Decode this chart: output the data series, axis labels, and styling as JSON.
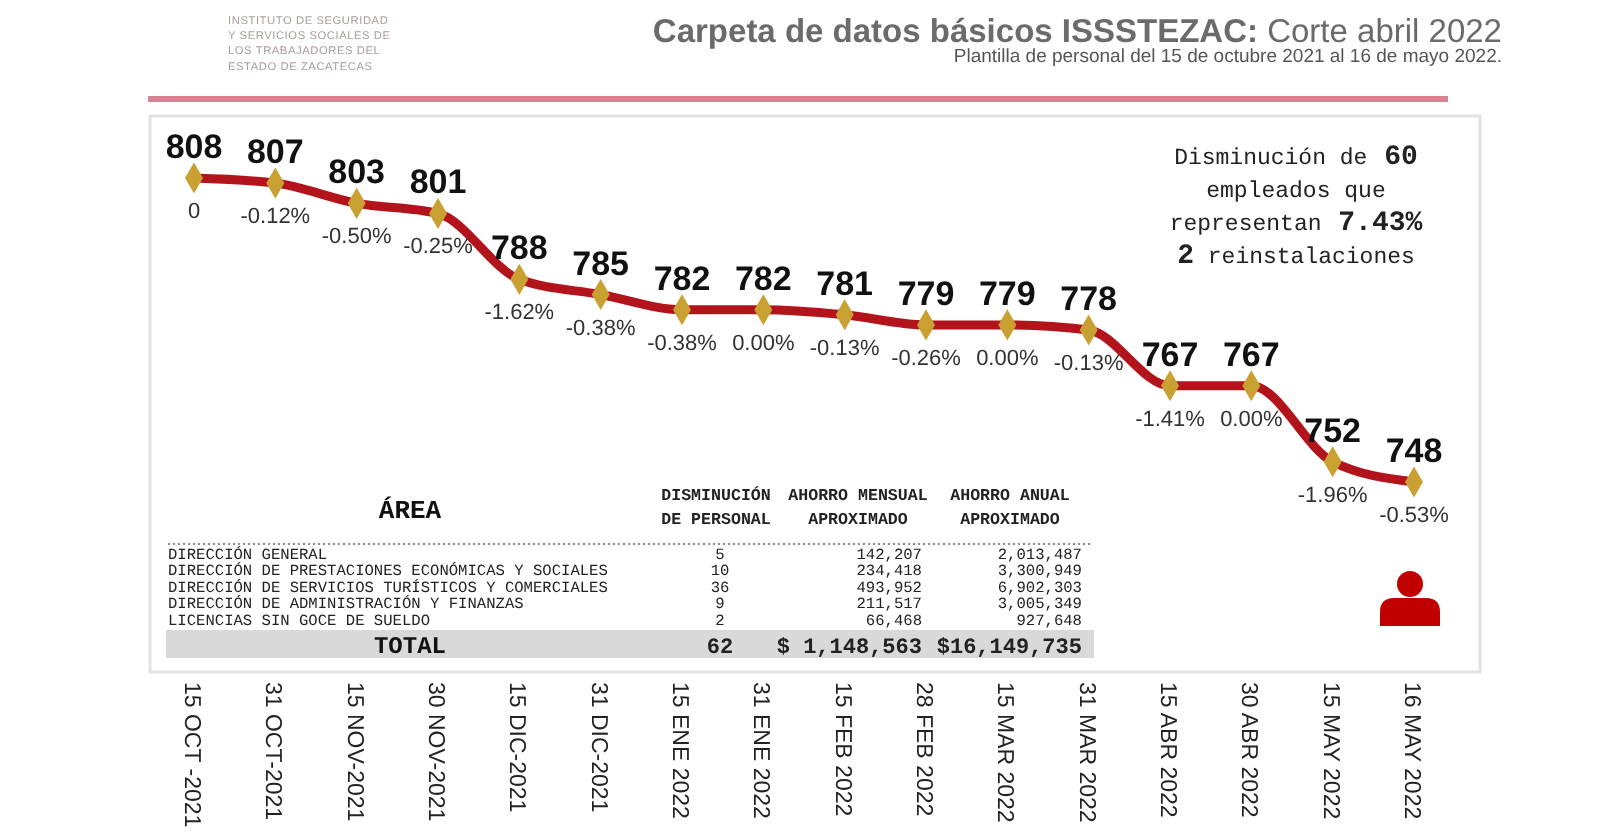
{
  "chart_data": [
    {
      "type": "line",
      "title": "Carpeta de datos básicos ISSSTEZAC: Corte abril 2022",
      "subtitle": "Plantilla de personal del 15 de octubre 2021 al 16 de mayo 2022.",
      "categories": [
        "15 OCT -2021",
        "31 OCT-2021",
        "15 NOV-2021",
        "30 NOV-2021",
        "15 DIC-2021",
        "31 DIC-2021",
        "15 ENE 2022",
        "31 ENE 2022",
        "15 FEB 2022",
        "28 FEB 2022",
        "15 MAR 2022",
        "31 MAR 2022",
        "15 ABR 2022",
        "30 ABR 2022",
        "15 MAY 2022",
        "16 MAY 2022"
      ],
      "values": [
        808,
        807,
        803,
        801,
        788,
        785,
        782,
        782,
        781,
        779,
        779,
        778,
        767,
        767,
        752,
        748
      ],
      "color": "#b3141c",
      "marker": "diamond",
      "data_labels": true,
      "tick_labels": "x",
      "annotations": [
        "INSTITUTO DE SEGURIDAD Y SERVICIOS SOCIALES DE LOS TRABAJADORES DEL ESTADO DE ZACATECAS",
        "Disminución de 60 empleados que representan 7.43% 2 reinstalaciones",
        {
          "text": "0",
          "x": "15 OCT -2021",
          "y": 808
        },
        {
          "text": "-0.12%",
          "x": "31 OCT-2021",
          "y": 807
        },
        {
          "text": "-0.50%",
          "x": "15 NOV-2021",
          "y": 803
        },
        {
          "text": "-0.25%",
          "x": "30 NOV-2021",
          "y": 801
        },
        {
          "text": "-1.62%",
          "x": "15 DIC-2021",
          "y": 788
        },
        {
          "text": "-0.38%",
          "x": "31 DIC-2021",
          "y": 785
        },
        {
          "text": "-0.38%",
          "x": "15 ENE 2022",
          "y": 782
        },
        {
          "text": "0.00%",
          "x": "31 ENE 2022",
          "y": 782
        },
        {
          "text": "-0.13%",
          "x": "15 FEB 2022",
          "y": 781
        },
        {
          "text": "-0.26%",
          "x": "28 FEB 2022",
          "y": 779
        },
        {
          "text": "0.00%",
          "x": "15 MAR 2022",
          "y": 779
        },
        {
          "text": "-0.13%",
          "x": "31 MAR 2022",
          "y": 778
        },
        {
          "text": "-1.41%",
          "x": "15 ABR 2022",
          "y": 767
        },
        {
          "text": "0.00%",
          "x": "30 ABR 2022",
          "y": 767
        },
        {
          "text": "-1.96%",
          "x": "15 MAY 2022",
          "y": 752
        },
        {
          "text": "-0.53%",
          "x": "16 MAY 2022",
          "y": 748
        }
      ]
    },
    {
      "type": "other",
      "xlabel": "ÁREA",
      "categories": [
        "DIRECCIÓN GENERAL",
        "DIRECCIÓN DE PRESTACIONES ECONÓMICAS Y SOCIALES",
        "DIRECCIÓN DE SERVICIOS TURÍSTICOS Y COMERCIALES",
        "DIRECCIÓN DE ADMINISTRACIÓN Y FINANZAS",
        "LICENCIAS SIN GOCE DE SUELDO",
        "TOTAL"
      ],
      "series": [
        {
          "name": "DISMINUCIÓN DE PERSONAL",
          "values": [
            5,
            10,
            36,
            9,
            2,
            62
          ],
          "value_labels": [
            "5",
            "10",
            "36",
            "9",
            "2",
            "62"
          ]
        },
        {
          "name": "AHORRO MENSUAL APROXIMADO",
          "values": [
            142207,
            234418,
            493952,
            211517,
            66468,
            1148563
          ],
          "value_labels": [
            "142,207",
            "234,418",
            "493,952",
            "211,517",
            "66,468",
            "$ 1,148,563"
          ]
        },
        {
          "name": "AHORRO ANUAL APROXIMADO",
          "values": [
            2013487,
            3300949,
            6902303,
            3005349,
            927648,
            16149735
          ],
          "value_labels": [
            "2,013,487",
            "3,300,949",
            "6,902,303",
            "3,005,349",
            "927,648",
            "$16,149,735"
          ]
        }
      ]
    }
  ]
}
